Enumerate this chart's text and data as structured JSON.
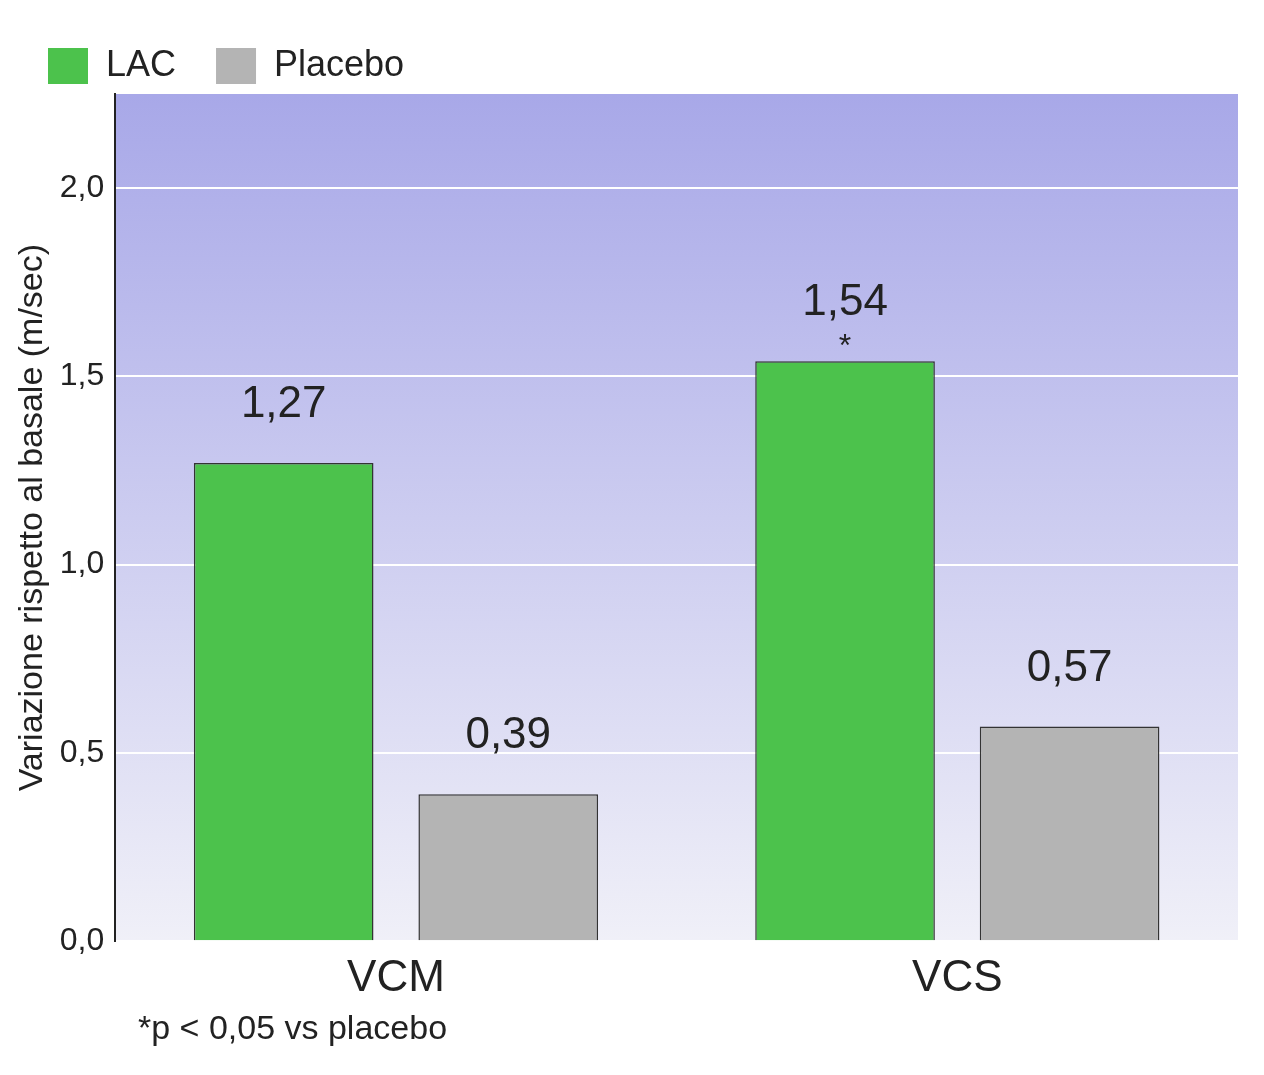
{
  "chart_data": {
    "type": "bar",
    "ylabel": "Variazione rispetto al basale (m/sec)",
    "categories": [
      "VCM",
      "VCS"
    ],
    "series": [
      {
        "name": "LAC",
        "color": "#4cc24c",
        "values": [
          1.27,
          1.54
        ],
        "value_labels": [
          "1,27",
          "1,54"
        ]
      },
      {
        "name": "Placebo",
        "color": "#b4b4b4",
        "values": [
          0.39,
          0.57
        ],
        "value_labels": [
          "0,39",
          "0,57"
        ]
      }
    ],
    "ylim": [
      0,
      2.25
    ],
    "yticks": [
      {
        "value": 0,
        "label": "0,0"
      },
      {
        "value": 0.5,
        "label": "0,5"
      },
      {
        "value": 1,
        "label": "1,0"
      },
      {
        "value": 1.5,
        "label": "1,5"
      },
      {
        "value": 2,
        "label": "2,0"
      }
    ],
    "grid": "y",
    "legend": "top left",
    "annotations": [
      "*",
      "*p < 0,05 vs placebo"
    ]
  }
}
